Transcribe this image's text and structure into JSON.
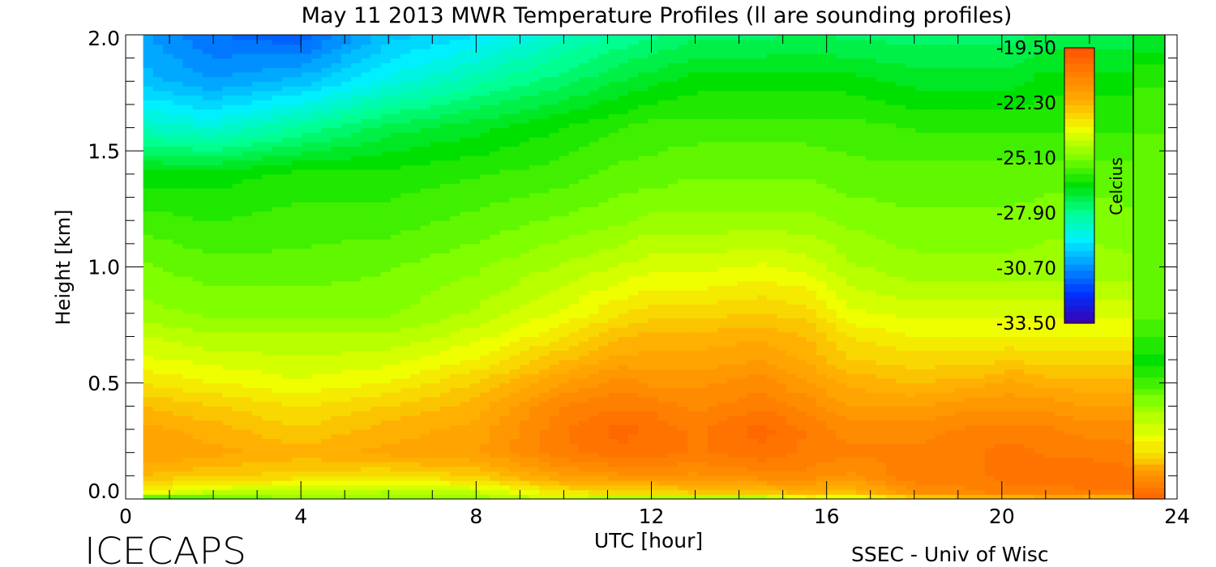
{
  "chart_data": {
    "type": "heatmap",
    "title": "May 11 2013 MWR Temperature Profiles (ll are sounding profiles)",
    "xlabel": "UTC [hour]",
    "ylabel": "Height [km]",
    "xlim": [
      0,
      24
    ],
    "ylim": [
      0,
      2
    ],
    "x_ticks": [
      "0",
      "4",
      "8",
      "12",
      "16",
      "20",
      "24"
    ],
    "y_ticks": [
      "0.0",
      "0.5",
      "1.0",
      "1.5",
      "2.0"
    ],
    "colorbar": {
      "label": "Celcius",
      "ticks": [
        "-19.50",
        "-22.30",
        "-25.10",
        "-27.90",
        "-30.70",
        "-33.50"
      ],
      "range": [
        -33.5,
        -19.5
      ]
    },
    "heights_km": [
      0.0,
      0.02,
      0.1,
      0.2,
      0.3,
      0.4,
      0.5,
      0.6,
      0.7,
      0.8,
      1.0,
      1.2,
      1.4,
      1.6,
      1.8,
      2.0
    ],
    "times_utc": [
      0.4,
      2,
      4,
      6,
      8,
      10,
      11.3,
      12,
      13,
      14.5,
      15.6,
      16.5,
      18,
      19.4,
      20.2,
      21,
      22,
      23
    ],
    "temperature_c": [
      [
        -27.5,
        -26.0,
        -25.0,
        -24.5,
        -24.8,
        -24.5,
        -25.8,
        -25.8,
        -25.8,
        -25.8,
        -24.5,
        -24.8,
        -24.0,
        -23.5,
        -23.8,
        -23.0,
        -23.5,
        -23.5
      ],
      [
        -23.8,
        -24.5,
        -24.5,
        -24.8,
        -24.5,
        -23.5,
        -23.2,
        -23.2,
        -23.0,
        -22.8,
        -22.5,
        -22.8,
        -21.5,
        -21.2,
        -21.0,
        -21.0,
        -20.8,
        -20.8
      ],
      [
        -22.5,
        -22.8,
        -23.0,
        -23.2,
        -22.8,
        -21.8,
        -21.5,
        -21.5,
        -21.5,
        -21.2,
        -21.2,
        -21.5,
        -20.8,
        -20.8,
        -20.5,
        -20.5,
        -20.5,
        -20.5
      ],
      [
        -21.8,
        -22.0,
        -22.3,
        -22.0,
        -21.8,
        -20.8,
        -20.5,
        -20.5,
        -20.8,
        -20.5,
        -20.8,
        -21.0,
        -21.0,
        -20.8,
        -20.5,
        -20.8,
        -20.8,
        -21.0
      ],
      [
        -22.0,
        -22.3,
        -22.8,
        -22.3,
        -22.0,
        -20.8,
        -20.2,
        -20.5,
        -20.8,
        -20.2,
        -20.8,
        -21.2,
        -21.2,
        -21.0,
        -21.0,
        -21.0,
        -21.2,
        -21.2
      ],
      [
        -22.5,
        -22.8,
        -23.2,
        -22.8,
        -22.3,
        -21.0,
        -20.8,
        -20.8,
        -21.2,
        -20.8,
        -21.2,
        -21.8,
        -21.8,
        -21.5,
        -21.5,
        -21.5,
        -21.8,
        -21.8
      ],
      [
        -23.2,
        -23.5,
        -23.8,
        -23.5,
        -22.8,
        -21.8,
        -21.2,
        -21.5,
        -21.5,
        -21.2,
        -21.8,
        -22.2,
        -22.5,
        -22.3,
        -22.0,
        -22.3,
        -22.3,
        -22.3
      ],
      [
        -23.8,
        -24.0,
        -24.2,
        -24.0,
        -23.5,
        -22.5,
        -22.0,
        -22.0,
        -22.0,
        -21.8,
        -22.2,
        -22.8,
        -23.0,
        -23.0,
        -22.8,
        -23.0,
        -23.0,
        -23.0
      ],
      [
        -24.2,
        -24.5,
        -24.5,
        -24.5,
        -24.0,
        -23.2,
        -22.5,
        -22.3,
        -22.3,
        -22.2,
        -22.5,
        -23.2,
        -23.5,
        -23.5,
        -23.5,
        -23.5,
        -23.5,
        -23.5
      ],
      [
        -24.8,
        -25.0,
        -25.0,
        -25.0,
        -24.5,
        -23.8,
        -23.2,
        -23.0,
        -23.0,
        -22.8,
        -23.0,
        -23.8,
        -24.0,
        -24.0,
        -24.0,
        -24.0,
        -24.0,
        -24.0
      ],
      [
        -25.2,
        -25.5,
        -25.5,
        -25.3,
        -25.0,
        -24.5,
        -24.2,
        -24.0,
        -24.0,
        -23.8,
        -24.0,
        -24.5,
        -24.8,
        -24.8,
        -24.8,
        -24.8,
        -24.8,
        -24.8
      ],
      [
        -25.8,
        -26.0,
        -25.8,
        -25.8,
        -25.5,
        -25.2,
        -25.0,
        -24.8,
        -24.8,
        -24.8,
        -24.8,
        -25.0,
        -25.2,
        -25.2,
        -25.2,
        -25.0,
        -25.0,
        -25.2
      ],
      [
        -26.5,
        -26.5,
        -26.2,
        -26.2,
        -26.0,
        -25.8,
        -25.5,
        -25.5,
        -25.3,
        -25.3,
        -25.3,
        -25.5,
        -25.5,
        -25.5,
        -25.5,
        -25.5,
        -25.5,
        -25.5
      ],
      [
        -28.5,
        -28.8,
        -28.0,
        -27.2,
        -26.8,
        -26.3,
        -26.0,
        -25.8,
        -25.8,
        -25.8,
        -25.8,
        -25.8,
        -26.0,
        -26.0,
        -26.0,
        -26.0,
        -26.0,
        -26.0
      ],
      [
        -30.0,
        -30.5,
        -30.0,
        -29.0,
        -28.2,
        -27.5,
        -27.0,
        -26.8,
        -26.5,
        -26.5,
        -26.5,
        -26.5,
        -26.8,
        -26.8,
        -26.8,
        -26.5,
        -26.5,
        -26.5
      ],
      [
        -30.5,
        -31.2,
        -31.5,
        -30.0,
        -29.5,
        -28.5,
        -28.0,
        -27.8,
        -27.5,
        -27.5,
        -27.3,
        -27.5,
        -27.5,
        -27.5,
        -27.5,
        -27.3,
        -27.3,
        -27.3
      ]
    ],
    "sounding": {
      "heights_km": [
        0.0,
        0.05,
        0.1,
        0.15,
        0.2,
        0.3,
        0.4,
        0.5,
        0.6,
        0.7,
        0.8,
        1.0,
        1.2,
        1.5,
        1.8,
        2.0
      ],
      "temperature_c": [
        -20.2,
        -20.5,
        -21.5,
        -22.3,
        -23.2,
        -24.0,
        -24.8,
        -25.8,
        -26.5,
        -26.0,
        -25.5,
        -25.5,
        -25.5,
        -25.5,
        -26.0,
        -27.0
      ]
    }
  },
  "footer": {
    "left_logo": "ICECAPS",
    "right_credit": "SSEC - Univ of Wisc"
  },
  "colors": {
    "colormap": [
      "#3a00b0",
      "#0030ff",
      "#0090ff",
      "#00f0ff",
      "#00ff90",
      "#00e000",
      "#80ff00",
      "#f0ff00",
      "#ffb000",
      "#ff8000",
      "#ff5000"
    ]
  }
}
